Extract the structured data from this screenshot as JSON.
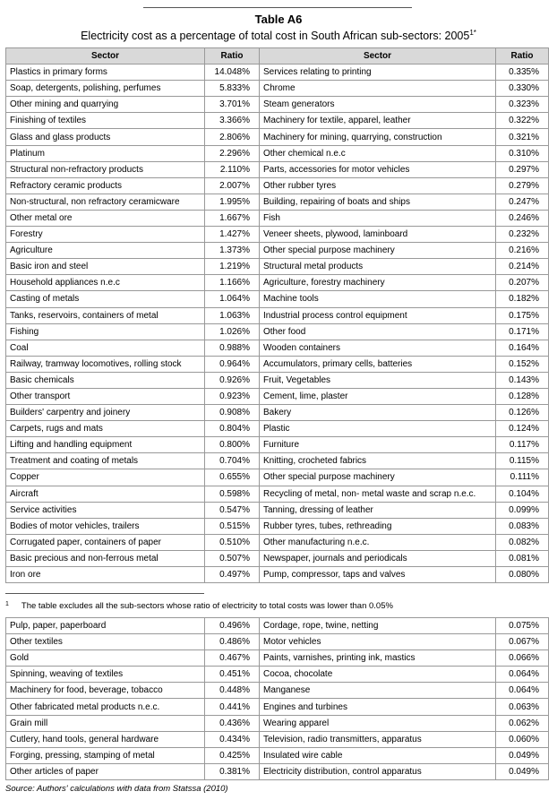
{
  "header": {
    "title": "Table A6",
    "subtitle": "Electricity cost as a percentage of total cost in South African sub-sectors: 2005",
    "subtitle_sup": "1*"
  },
  "table": {
    "columns": [
      "Sector",
      "Ratio",
      "Sector",
      "Ratio"
    ],
    "rows": [
      [
        "Plastics in primary forms",
        "14.048%",
        "Services relating to printing",
        "0.335%"
      ],
      [
        "Soap, detergents, polishing, perfumes",
        "5.833%",
        "Chrome",
        "0.330%"
      ],
      [
        "Other mining and quarrying",
        "3.701%",
        "Steam generators",
        "0.323%"
      ],
      [
        "Finishing of textiles",
        "3.366%",
        "Machinery for textile, apparel, leather",
        "0.322%"
      ],
      [
        "Glass and glass products",
        "2.806%",
        "Machinery for mining, quarrying, construction",
        "0.321%"
      ],
      [
        "Platinum",
        "2.296%",
        "Other chemical n.e.c",
        "0.310%"
      ],
      [
        "Structural non-refractory products",
        "2.110%",
        "Parts, accessories for motor vehicles",
        "0.297%"
      ],
      [
        "Refractory ceramic products",
        "2.007%",
        "Other rubber tyres",
        "0.279%"
      ],
      [
        "Non-structural, non refractory ceramicware",
        "1.995%",
        "Building, repairing of boats and ships",
        "0.247%"
      ],
      [
        "Other metal ore",
        "1.667%",
        "Fish",
        "0.246%"
      ],
      [
        "Forestry",
        "1.427%",
        "Veneer sheets, plywood, laminboard",
        "0.232%"
      ],
      [
        "Agriculture",
        "1.373%",
        "Other special purpose machinery",
        "0.216%"
      ],
      [
        "Basic iron and steel",
        "1.219%",
        "Structural metal products",
        "0.214%"
      ],
      [
        "Household appliances n.e.c",
        "1.166%",
        "Agriculture, forestry machinery",
        "0.207%"
      ],
      [
        "Casting of metals",
        "1.064%",
        "Machine tools",
        "0.182%"
      ],
      [
        "Tanks, reservoirs, containers of metal",
        "1.063%",
        "Industrial process control equipment",
        "0.175%"
      ],
      [
        "Fishing",
        "1.026%",
        "Other food",
        "0.171%"
      ],
      [
        "Coal",
        "0.988%",
        "Wooden containers",
        "0.164%"
      ],
      [
        "Railway, tramway locomotives, rolling stock",
        "0.964%",
        "Accumulators, primary cells, batteries",
        "0.152%"
      ],
      [
        "Basic chemicals",
        "0.926%",
        "Fruit, Vegetables",
        "0.143%"
      ],
      [
        "Other transport",
        "0.923%",
        "Cement, lime, plaster",
        "0.128%"
      ],
      [
        "Builders' carpentry and joinery",
        "0.908%",
        "Bakery",
        "0.126%"
      ],
      [
        "Carpets, rugs and mats",
        "0.804%",
        "Plastic",
        "0.124%"
      ],
      [
        "Lifting and handling equipment",
        "0.800%",
        "Furniture",
        "0.117%"
      ],
      [
        "Treatment and coating of metals",
        "0.704%",
        "Knitting, crocheted fabrics",
        "0.115%"
      ],
      [
        "Copper",
        "0.655%",
        "Other special purpose machinery",
        "0.111%"
      ],
      [
        "Aircraft",
        "0.598%",
        "Recycling of metal, non- metal waste and scrap n.e.c.",
        "0.104%"
      ],
      [
        "Service activities",
        "0.547%",
        "Tanning, dressing of leather",
        "0.099%"
      ],
      [
        "Bodies of motor vehicles, trailers",
        "0.515%",
        "Rubber tyres, tubes, rethreading",
        "0.083%"
      ],
      [
        "Corrugated paper, containers of paper",
        "0.510%",
        "Other manufacturing n.e.c.",
        "0.082%"
      ],
      [
        "Basic precious and non-ferrous metal",
        "0.507%",
        "Newspaper, journals and periodicals",
        "0.081%"
      ],
      [
        "Iron ore",
        "0.497%",
        "Pump, compressor, taps and valves",
        "0.080%"
      ]
    ]
  },
  "footnote": {
    "marker": "1",
    "text": "The table excludes all the sub-sectors whose ratio of electricity to total costs was lower than 0.05%"
  },
  "table2": {
    "rows": [
      [
        "Pulp, paper, paperboard",
        "0.496%",
        "Cordage, rope, twine, netting",
        "0.075%"
      ],
      [
        "Other textiles",
        "0.486%",
        "Motor vehicles",
        "0.067%"
      ],
      [
        "Gold",
        "0.467%",
        "Paints, varnishes, printing ink, mastics",
        "0.066%"
      ],
      [
        "Spinning, weaving of textiles",
        "0.451%",
        "Cocoa, chocolate",
        "0.064%"
      ],
      [
        "Machinery for food, beverage, tobacco",
        "0.448%",
        "Manganese",
        "0.064%"
      ],
      [
        "Other fabricated metal products n.e.c.",
        "0.441%",
        "Engines and turbines",
        "0.063%"
      ],
      [
        "Grain mill",
        "0.436%",
        "Wearing apparel",
        "0.062%"
      ],
      [
        "Cutlery, hand tools, general hardware",
        "0.434%",
        "Television, radio transmitters, apparatus",
        "0.060%"
      ],
      [
        "Forging, pressing, stamping of metal",
        "0.425%",
        "Insulated wire cable",
        "0.049%"
      ],
      [
        "Other articles of paper",
        "0.381%",
        "Electricity distribution, control apparatus",
        "0.049%"
      ]
    ]
  },
  "source": "Source: Authors' calculations with data from Statssa (2010)"
}
